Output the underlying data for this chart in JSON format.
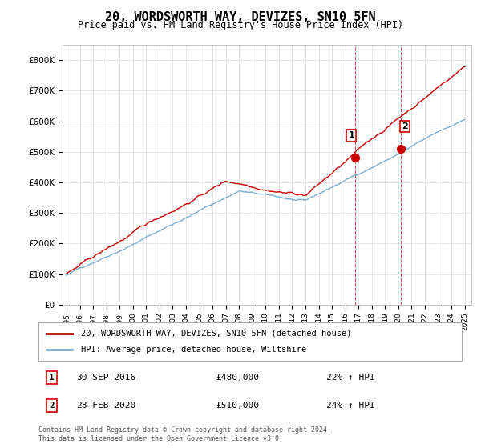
{
  "title": "20, WORDSWORTH WAY, DEVIZES, SN10 5FN",
  "subtitle": "Price paid vs. HM Land Registry's House Price Index (HPI)",
  "ylabel_ticks": [
    "£0",
    "£100K",
    "£200K",
    "£300K",
    "£400K",
    "£500K",
    "£600K",
    "£700K",
    "£800K"
  ],
  "ytick_values": [
    0,
    100000,
    200000,
    300000,
    400000,
    500000,
    600000,
    700000,
    800000
  ],
  "ylim": [
    0,
    850000
  ],
  "xlim_start": 1995.0,
  "xlim_end": 2025.5,
  "hpi_color": "#7aafd4",
  "price_color": "#cc0000",
  "sale1_date": 2016.75,
  "sale1_price": 480000,
  "sale1_label": "1",
  "sale1_pct": "22%",
  "sale2_date": 2020.17,
  "sale2_price": 510000,
  "sale2_label": "2",
  "sale2_pct": "24%",
  "legend_line1": "20, WORDSWORTH WAY, DEVIZES, SN10 5FN (detached house)",
  "legend_line2": "HPI: Average price, detached house, Wiltshire",
  "table_row1": "1     30-SEP-2016          £480,000          22% ↑ HPI",
  "table_row2": "2     28-FEB-2020          £510,000          24% ↑ HPI",
  "footnote": "Contains HM Land Registry data © Crown copyright and database right 2024.\nThis data is licensed under the Open Government Licence v3.0.",
  "background_color": "#ffffff",
  "grid_color": "#dddddd"
}
